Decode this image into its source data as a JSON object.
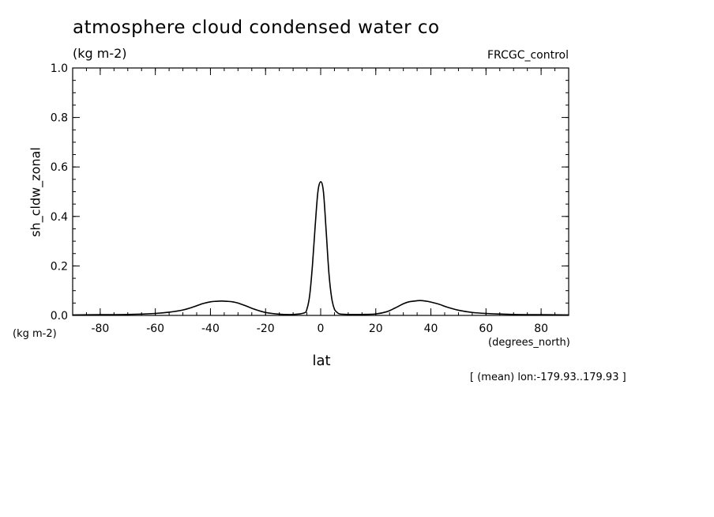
{
  "chart_data": {
    "type": "line",
    "title": "atmosphere cloud condensed water co",
    "units_label": "(kg m-2)",
    "dataset_label": "FRCGC_control",
    "ylabel": "sh_cldw_zonal",
    "y_units": "(kg m-2)",
    "xlabel": "lat",
    "x_units": "(degrees_north)",
    "annotation": "[ (mean) lon:-179.93..179.93 ]",
    "xlim": [
      -90,
      90
    ],
    "ylim": [
      0.0,
      1.0
    ],
    "x_ticks": [
      -80,
      -60,
      -40,
      -20,
      0,
      20,
      40,
      60,
      80
    ],
    "x_tick_labels": [
      "-80",
      "-60",
      "-40",
      "-20",
      "0",
      "20",
      "40",
      "60",
      "80"
    ],
    "y_ticks": [
      0.0,
      0.2,
      0.4,
      0.6,
      0.8,
      1.0
    ],
    "y_tick_labels": [
      "0.0",
      "0.2",
      "0.4",
      "0.6",
      "0.8",
      "1.0"
    ],
    "grid": false,
    "line_color": "#000000",
    "series": [
      {
        "x": [
          -90,
          -80,
          -70,
          -60,
          -55,
          -50,
          -46,
          -43,
          -40,
          -38,
          -36,
          -34,
          -32,
          -30,
          -27,
          -24,
          -20,
          -15,
          -10,
          -6,
          -5,
          -4,
          -3,
          -2,
          -1,
          0,
          1,
          2,
          3,
          4,
          5,
          6,
          7,
          10,
          15,
          20,
          24,
          27,
          30,
          32,
          34,
          36,
          38,
          40,
          43,
          46,
          50,
          55,
          60,
          70,
          80,
          90
        ],
        "y": [
          0.002,
          0.003,
          0.004,
          0.008,
          0.013,
          0.022,
          0.035,
          0.047,
          0.055,
          0.057,
          0.058,
          0.057,
          0.055,
          0.05,
          0.038,
          0.025,
          0.012,
          0.005,
          0.004,
          0.01,
          0.025,
          0.08,
          0.2,
          0.36,
          0.5,
          0.54,
          0.5,
          0.34,
          0.17,
          0.07,
          0.025,
          0.012,
          0.006,
          0.004,
          0.004,
          0.006,
          0.015,
          0.03,
          0.047,
          0.055,
          0.058,
          0.06,
          0.058,
          0.054,
          0.045,
          0.033,
          0.021,
          0.012,
          0.008,
          0.004,
          0.003,
          0.002
        ]
      }
    ]
  }
}
